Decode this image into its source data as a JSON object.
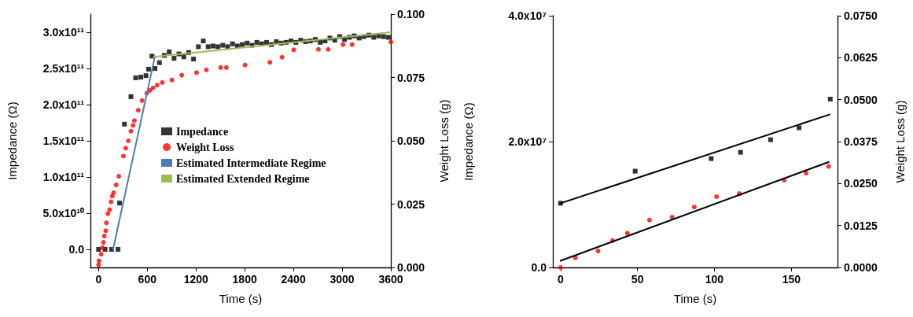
{
  "chart_data": [
    {
      "type": "scatter",
      "xlabel": "Time (s)",
      "ylabel": "Impedance (Ω)",
      "y2label": "Weight Loss (g)",
      "xlim": [
        -100,
        3600
      ],
      "xticks": [
        0,
        600,
        1200,
        1800,
        2400,
        3000,
        3600
      ],
      "ylim": [
        -25000000000.0,
        325000000000.0
      ],
      "yticks": [
        {
          "value": 0,
          "label": "0.0"
        },
        {
          "value": 50000000000.0,
          "label": "5.0x10¹⁰"
        },
        {
          "value": 100000000000.0,
          "label": "1.0x10¹¹"
        },
        {
          "value": 150000000000.0,
          "label": "1.5x10¹¹"
        },
        {
          "value": 200000000000.0,
          "label": "2.0x10¹¹"
        },
        {
          "value": 250000000000.0,
          "label": "2.5x10¹¹"
        },
        {
          "value": 300000000000.0,
          "label": "3.0x10¹¹"
        }
      ],
      "y2lim": [
        0,
        0.1
      ],
      "y2ticks": [
        {
          "value": 0,
          "label": "0.000"
        },
        0.025,
        {
          "value": 0.05,
          "label": "0.050"
        },
        0.075,
        {
          "value": 0.1,
          "label": "0.100"
        }
      ],
      "grid": false,
      "legend": "center",
      "series": [
        {
          "name": "Impedance",
          "marker": "square",
          "color": "#000000",
          "x": [
            0,
            80,
            160,
            240,
            259,
            319,
            399,
            457,
            520,
            584,
            616,
            658,
            695,
            750,
            810,
            870,
            930,
            990,
            1050,
            1110,
            1170,
            1230,
            1290,
            1350,
            1410,
            1470,
            1530,
            1590,
            1650,
            1710,
            1770,
            1830,
            1890,
            1950,
            2010,
            2070,
            2130,
            2190,
            2250,
            2310,
            2370,
            2430,
            2490,
            2550,
            2610,
            2670,
            2730,
            2790,
            2850,
            2910,
            2970,
            3030,
            3090,
            3150,
            3210,
            3270,
            3330,
            3390,
            3450,
            3510,
            3570
          ],
          "values": [
            0,
            0,
            0,
            0,
            64000000000.0,
            173000000000.0,
            211000000000.0,
            237000000000.0,
            238000000000.0,
            240000000000.0,
            249000000000.0,
            267000000000.0,
            250000000000.0,
            258000000000.0,
            268000000000.0,
            273000000000.0,
            264000000000.0,
            270000000000.0,
            266000000000.0,
            272000000000.0,
            263000000000.0,
            280000000000.0,
            288000000000.0,
            280000000000.0,
            281000000000.0,
            280000000000.0,
            282000000000.0,
            280000000000.0,
            284000000000.0,
            281000000000.0,
            283000000000.0,
            285000000000.0,
            282000000000.0,
            286000000000.0,
            284000000000.0,
            286000000000.0,
            283000000000.0,
            287000000000.0,
            285000000000.0,
            286000000000.0,
            288000000000.0,
            286000000000.0,
            289000000000.0,
            287000000000.0,
            288000000000.0,
            290000000000.0,
            286000000000.0,
            288000000000.0,
            292000000000.0,
            289000000000.0,
            294000000000.0,
            290000000000.0,
            293000000000.0,
            295000000000.0,
            292000000000.0,
            294000000000.0,
            296000000000.0,
            293000000000.0,
            295000000000.0,
            294000000000.0,
            293000000000.0
          ]
        },
        {
          "name": "Weight Loss",
          "marker": "circle",
          "color": "#ff0000",
          "axis": "y2",
          "x": [
            0,
            5,
            32,
            50,
            60,
            70,
            89,
            96,
            115,
            137,
            153,
            169,
            185,
            217,
            249,
            306,
            335,
            367,
            399,
            425,
            441,
            489,
            536,
            594,
            632,
            670,
            721,
            785,
            903,
            1025,
            1207,
            1328,
            1504,
            1574,
            1804,
            2110,
            2261,
            2404,
            2708,
            2829,
            3011,
            3123,
            3600
          ],
          "values": [
            0.001,
            0.0026,
            0.0052,
            0.0078,
            0.0099,
            0.0124,
            0.0145,
            0.0176,
            0.0212,
            0.0228,
            0.0259,
            0.0282,
            0.0295,
            0.0326,
            0.036,
            0.044,
            0.0471,
            0.05,
            0.0538,
            0.0561,
            0.058,
            0.0621,
            0.0659,
            0.0688,
            0.0699,
            0.0709,
            0.072,
            0.073,
            0.074,
            0.0759,
            0.0769,
            0.078,
            0.0789,
            0.0789,
            0.0799,
            0.081,
            0.083,
            0.0859,
            0.0861,
            0.0861,
            0.088,
            0.088,
            0.089
          ]
        },
        {
          "name": "Estimated Intermediate Regime",
          "type": "line",
          "marker": "none",
          "line_style": "solid",
          "color": "#4a7ebb",
          "x": [
            179,
            695
          ],
          "values": [
            0,
            267000000000.0
          ]
        },
        {
          "name": "Estimated Extended Regime",
          "type": "line",
          "marker": "none",
          "line_style": "solid",
          "color": "#9bbb59",
          "x": [
            680,
            3600
          ],
          "values": [
            266000000000.0,
            300000000000.0
          ]
        }
      ]
    },
    {
      "type": "scatter",
      "xlabel": "Time (s)",
      "ylabel": "Impedance (Ω)",
      "y2label": "Weight Loss (g)",
      "xlim": [
        -5,
        180
      ],
      "xticks": [
        0,
        50,
        100,
        150
      ],
      "ylim": [
        0,
        40000000.0
      ],
      "yticks": [
        {
          "value": 0,
          "label": "0.0"
        },
        {
          "value": 20000000.0,
          "label": "2.0x10⁷"
        },
        {
          "value": 40000000.0,
          "label": "4.0x10⁷"
        }
      ],
      "y2lim": [
        0,
        0.075
      ],
      "y2ticks": [
        {
          "value": 0,
          "label": "0.0000"
        },
        0.0125,
        {
          "value": 0.025,
          "label": "0.0250"
        },
        0.0375,
        {
          "value": 0.05,
          "label": "0.0500"
        },
        0.0625,
        {
          "value": 0.075,
          "label": "0.0750"
        }
      ],
      "grid": false,
      "legend": false,
      "series": [
        {
          "marker": "square",
          "color": "#000000",
          "x": [
            0,
            48.5,
            97.9,
            117,
            136.5,
            155,
            175.3
          ],
          "values": [
            10200000.0,
            15300000.0,
            17300000.0,
            18300000.0,
            20300000.0,
            22200000.0,
            26750000.0
          ]
        },
        {
          "marker": "circle",
          "color": "#ff0000",
          "axis": "y2",
          "x": [
            0,
            9.6,
            24.4,
            33.8,
            43.4,
            57.8,
            72.5,
            86.9,
            101.4,
            116.2,
            145.3,
            159.6,
            174.2
          ],
          "values": [
            0,
            0.0029,
            0.0049,
            0.008,
            0.0102,
            0.0141,
            0.015,
            0.018,
            0.0211,
            0.022,
            0.026,
            0.0281,
            0.0301
          ]
        },
        {
          "type": "line",
          "marker": "none",
          "line_style": "solid",
          "color": "#000000",
          "x": [
            0,
            174.8
          ],
          "values": [
            10200000.0,
            24300000.0
          ]
        },
        {
          "type": "line",
          "marker": "none",
          "line_style": "solid",
          "color": "#000000",
          "axis": "y2",
          "x": [
            0,
            174.2
          ],
          "values": [
            0.002,
            0.0314
          ]
        }
      ]
    }
  ]
}
